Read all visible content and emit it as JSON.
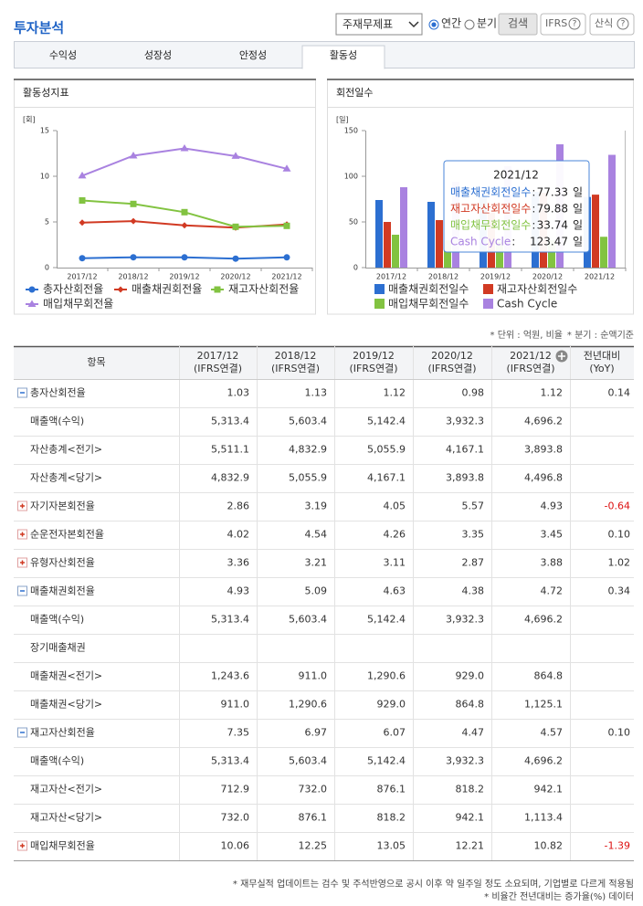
{
  "header": {
    "title": "투자분석",
    "select": "주재무제표",
    "radios": [
      "연간",
      "분기"
    ],
    "search": "검색",
    "ifrs": "IFRS",
    "formula": "산식",
    "help_icon": "?"
  },
  "tabs": {
    "items": [
      "수익성",
      "성장성",
      "안정성",
      "활동성"
    ],
    "active": 3
  },
  "chart_data": [
    {
      "type": "line",
      "title": "활동성지표",
      "unit_label": "[회]",
      "categories": [
        "2017/12",
        "2018/12",
        "2019/12",
        "2020/12",
        "2021/12"
      ],
      "ylim": [
        0,
        15
      ],
      "yticks": [
        0,
        5,
        10,
        15
      ],
      "series": [
        {
          "name": "총자산회전율",
          "color": "#2c6fd1",
          "marker": "circle",
          "values": [
            1.03,
            1.13,
            1.12,
            0.98,
            1.12
          ]
        },
        {
          "name": "매출채권회전율",
          "color": "#d13a23",
          "marker": "diamond",
          "values": [
            4.93,
            5.09,
            4.63,
            4.38,
            4.72
          ]
        },
        {
          "name": "재고자산회전율",
          "color": "#82c341",
          "marker": "square",
          "values": [
            7.35,
            6.97,
            6.07,
            4.47,
            4.57
          ]
        },
        {
          "name": "매입채무회전율",
          "color": "#a982e0",
          "marker": "triangle",
          "values": [
            10.06,
            12.25,
            13.05,
            12.21,
            10.82
          ]
        }
      ]
    },
    {
      "type": "bar",
      "title": "회전일수",
      "unit_label": "[일]",
      "categories": [
        "2017/12",
        "2018/12",
        "2019/12",
        "2020/12",
        "2021/12"
      ],
      "ylim": [
        0,
        150
      ],
      "yticks": [
        0,
        50,
        100,
        150
      ],
      "series": [
        {
          "name": "매출채권회전일수",
          "color": "#2c6fd1",
          "values": [
            74,
            72,
            79,
            83,
            77.33
          ]
        },
        {
          "name": "재고자산회전일수",
          "color": "#d13a23",
          "values": [
            50,
            52,
            60,
            82,
            79.88
          ]
        },
        {
          "name": "매입채무회전일수",
          "color": "#82c341",
          "values": [
            36,
            30,
            28,
            30,
            33.74
          ]
        },
        {
          "name": "Cash Cycle",
          "color": "#a982e0",
          "values": [
            88,
            94,
            111,
            135,
            123.47
          ]
        }
      ],
      "tooltip": {
        "title": "2021/12",
        "separator": ":",
        "unit": "일"
      }
    }
  ],
  "notes": {
    "unit": "* 단위 : 억원, 비율",
    "quarter": "* 분기 : 순액기준"
  },
  "table": {
    "item_header": "항목",
    "columns": [
      {
        "period": "2017/12",
        "basis": "(IFRS연결)"
      },
      {
        "period": "2018/12",
        "basis": "(IFRS연결)"
      },
      {
        "period": "2019/12",
        "basis": "(IFRS연결)"
      },
      {
        "period": "2020/12",
        "basis": "(IFRS연결)"
      },
      {
        "period": "2021/12",
        "basis": "(IFRS연결)"
      },
      {
        "period": "전년대비",
        "basis": "(YoY)"
      }
    ],
    "rows": [
      {
        "label": "총자산회전율",
        "expanded": true,
        "cells": [
          "1.03",
          "1.13",
          "1.12",
          "0.98",
          "1.12",
          "0.14"
        ]
      },
      {
        "label": "매출액(수익)",
        "cells": [
          "5,313.4",
          "5,603.4",
          "5,142.4",
          "3,932.3",
          "4,696.2",
          null
        ]
      },
      {
        "label": "자산총계<전기>",
        "cells": [
          "5,511.1",
          "4,832.9",
          "5,055.9",
          "4,167.1",
          "3,893.8",
          null
        ]
      },
      {
        "label": "자산총계<당기>",
        "cells": [
          "4,832.9",
          "5,055.9",
          "4,167.1",
          "3,893.8",
          "4,496.8",
          null
        ]
      },
      {
        "label": "자기자본회전율",
        "expanded": false,
        "cells": [
          "2.86",
          "3.19",
          "4.05",
          "5.57",
          "4.93",
          "-0.64"
        ]
      },
      {
        "label": "순운전자본회전율",
        "expanded": false,
        "cells": [
          "4.02",
          "4.54",
          "4.26",
          "3.35",
          "3.45",
          "0.10"
        ]
      },
      {
        "label": "유형자산회전율",
        "expanded": false,
        "cells": [
          "3.36",
          "3.21",
          "3.11",
          "2.87",
          "3.88",
          "1.02"
        ]
      },
      {
        "label": "매출채권회전율",
        "expanded": true,
        "cells": [
          "4.93",
          "5.09",
          "4.63",
          "4.38",
          "4.72",
          "0.34"
        ]
      },
      {
        "label": "매출액(수익)",
        "cells": [
          "5,313.4",
          "5,603.4",
          "5,142.4",
          "3,932.3",
          "4,696.2",
          null
        ]
      },
      {
        "label": "장기매출채권",
        "cells": [
          null,
          null,
          null,
          null,
          null,
          null
        ]
      },
      {
        "label": "매출채권<전기>",
        "cells": [
          "1,243.6",
          "911.0",
          "1,290.6",
          "929.0",
          "864.8",
          null
        ]
      },
      {
        "label": "매출채권<당기>",
        "cells": [
          "911.0",
          "1,290.6",
          "929.0",
          "864.8",
          "1,125.1",
          null
        ]
      },
      {
        "label": "재고자산회전율",
        "expanded": true,
        "cells": [
          "7.35",
          "6.97",
          "6.07",
          "4.47",
          "4.57",
          "0.10"
        ]
      },
      {
        "label": "매출액(수익)",
        "cells": [
          "5,313.4",
          "5,603.4",
          "5,142.4",
          "3,932.3",
          "4,696.2",
          null
        ]
      },
      {
        "label": "재고자산<전기>",
        "cells": [
          "712.9",
          "732.0",
          "876.1",
          "818.2",
          "942.1",
          null
        ]
      },
      {
        "label": "재고자산<당기>",
        "cells": [
          "732.0",
          "876.1",
          "818.2",
          "942.1",
          "1,113.4",
          null
        ]
      },
      {
        "label": "매입채무회전율",
        "expanded": false,
        "cells": [
          "10.06",
          "12.25",
          "13.05",
          "12.21",
          "10.82",
          "-1.39"
        ]
      }
    ]
  },
  "footer": [
    "* 재무실적 업데이트는 검수 및 주석반영으로 공시 이후 약 일주일 정도 소요되며, 기업별로 다르게 적용됨",
    "* 비율간 전년대비는 증가율(%) 데이터"
  ]
}
